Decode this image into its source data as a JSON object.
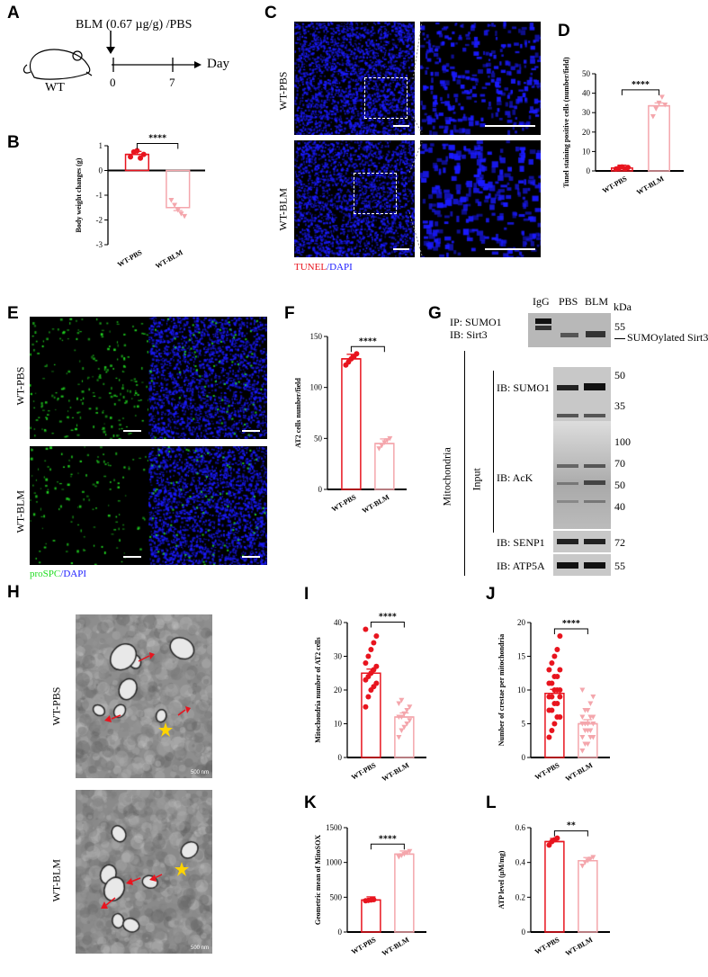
{
  "panels": {
    "A": "A",
    "B": "B",
    "C": "C",
    "D": "D",
    "E": "E",
    "F": "F",
    "G": "G",
    "H": "H",
    "I": "I",
    "J": "J",
    "K": "K",
    "L": "L"
  },
  "panel_a": {
    "treatment": "BLM (0.67 µg/g) /PBS",
    "strain": "WT",
    "day0": "0",
    "day7": "7",
    "axis": "Day"
  },
  "panel_c": {
    "row1": "WT-PBS",
    "row2": "WT-BLM",
    "stain_red": "TUNEL",
    "stain_sep": "/",
    "stain_blue": "DAPI"
  },
  "panel_e": {
    "row1": "WT-PBS",
    "row2": "WT-BLM",
    "stain_green": "proSPC",
    "stain_sep": "/",
    "stain_blue": "DAPI"
  },
  "panel_g": {
    "lanes": [
      "IgG",
      "PBS",
      "BLM"
    ],
    "kda": "kDa",
    "mito": "Mitochondria",
    "input": "Input",
    "ip_label1": "IP: SUMO1",
    "ip_label2": "IB: Sirt3",
    "ip_marker": "55",
    "ip_band": "SUMOylated Sirt3",
    "ib_sumo1": "IB: SUMO1",
    "sumo_markers": [
      "50",
      "35"
    ],
    "ib_ack": "IB: AcK",
    "ack_markers": [
      "100",
      "70",
      "50",
      "40"
    ],
    "ib_senp1": "IB: SENP1",
    "senp1_marker": "72",
    "ib_atp5a": "IB: ATP5A",
    "atp5a_marker": "55"
  },
  "panel_h": {
    "row1": "WT-PBS",
    "row2": "WT-BLM",
    "scale1": "500 nm",
    "scale2": "500 nm"
  },
  "colors": {
    "pbs": "#e8141e",
    "blm": "#f4a6ac",
    "dapi": "#1a1aff",
    "prospc": "#22dd22",
    "arrow": "#e8141e"
  },
  "chart_data": [
    {
      "id": "B",
      "type": "bar",
      "categories": [
        "WT-PBS",
        "WT-BLM"
      ],
      "values": [
        0.65,
        -1.5
      ],
      "points": [
        [
          0.55,
          0.75,
          0.8,
          0.5,
          0.65
        ],
        [
          -1.2,
          -1.4,
          -1.6,
          -1.75,
          -1.85
        ]
      ],
      "ylabel": "Body weight changes (g)",
      "ylim": [
        -3,
        1
      ],
      "yticks": [
        1,
        0,
        -1,
        -2,
        -3
      ],
      "significance": "****"
    },
    {
      "id": "D",
      "type": "bar",
      "categories": [
        "WT-PBS",
        "WT-BLM"
      ],
      "values": [
        1.5,
        33.5
      ],
      "points": [
        [
          1,
          1.5,
          2,
          1.2,
          1.8
        ],
        [
          28,
          32,
          35,
          38,
          34
        ]
      ],
      "ylabel": "Tunel staining positive cells (number/field)",
      "ylim": [
        0,
        50
      ],
      "yticks": [
        0,
        10,
        20,
        30,
        40,
        50
      ],
      "significance": "****"
    },
    {
      "id": "F",
      "type": "bar",
      "categories": [
        "WT-PBS",
        "WT-BLM"
      ],
      "values": [
        128,
        45
      ],
      "points": [
        [
          122,
          125,
          128,
          130,
          133
        ],
        [
          40,
          43,
          46,
          48,
          50
        ]
      ],
      "ylabel": "AT2 cells number/field",
      "ylim": [
        0,
        150
      ],
      "yticks": [
        0,
        50,
        100,
        150
      ],
      "significance": "****"
    },
    {
      "id": "I",
      "type": "bar",
      "categories": [
        "WT-PBS",
        "WT-BLM"
      ],
      "values": [
        25,
        12
      ],
      "points": [
        [
          15,
          18,
          20,
          21,
          22,
          23,
          24,
          25,
          26,
          27,
          28,
          30,
          32,
          34,
          36,
          38
        ],
        [
          6,
          8,
          9,
          10,
          11,
          12,
          12,
          13,
          14,
          15,
          16,
          17
        ]
      ],
      "ylabel": "Mitochondria number of AT2 cells",
      "ylim": [
        0,
        40
      ],
      "yticks": [
        0,
        10,
        20,
        30,
        40
      ],
      "significance": "****"
    },
    {
      "id": "J",
      "type": "bar",
      "categories": [
        "WT-PBS",
        "WT-BLM"
      ],
      "values": [
        9.5,
        5
      ],
      "points": [
        [
          3,
          4,
          5,
          6,
          6,
          7,
          7,
          8,
          8,
          9,
          9,
          9,
          10,
          10,
          10,
          11,
          11,
          12,
          12,
          13,
          13,
          14,
          15,
          16,
          18
        ],
        [
          1,
          2,
          2,
          3,
          3,
          3,
          4,
          4,
          4,
          5,
          5,
          5,
          5,
          6,
          6,
          6,
          7,
          7,
          8,
          9,
          10
        ]
      ],
      "ylabel": "Number of crestae per mitochondria",
      "ylim": [
        0,
        20
      ],
      "yticks": [
        0,
        5,
        10,
        15,
        20
      ],
      "significance": "****"
    },
    {
      "id": "K",
      "type": "bar",
      "categories": [
        "WT-PBS",
        "WT-BLM"
      ],
      "values": [
        460,
        1120
      ],
      "points": [
        [
          450,
          455,
          460,
          465
        ],
        [
          1080,
          1100,
          1120,
          1140,
          1160
        ]
      ],
      "ylabel": "Geometric mean of MitoSOX",
      "ylim": [
        0,
        1500
      ],
      "yticks": [
        0,
        500,
        1000,
        1500
      ],
      "significance": "****"
    },
    {
      "id": "L",
      "type": "bar",
      "categories": [
        "WT-PBS",
        "WT-BLM"
      ],
      "values": [
        0.52,
        0.41
      ],
      "points": [
        [
          0.5,
          0.52,
          0.53,
          0.54
        ],
        [
          0.38,
          0.4,
          0.41,
          0.42,
          0.43
        ]
      ],
      "ylabel": "ATP level (µM/mg)",
      "ylim": [
        0,
        0.6
      ],
      "yticks": [
        0.0,
        0.2,
        0.4,
        0.6
      ],
      "significance": "**"
    }
  ]
}
